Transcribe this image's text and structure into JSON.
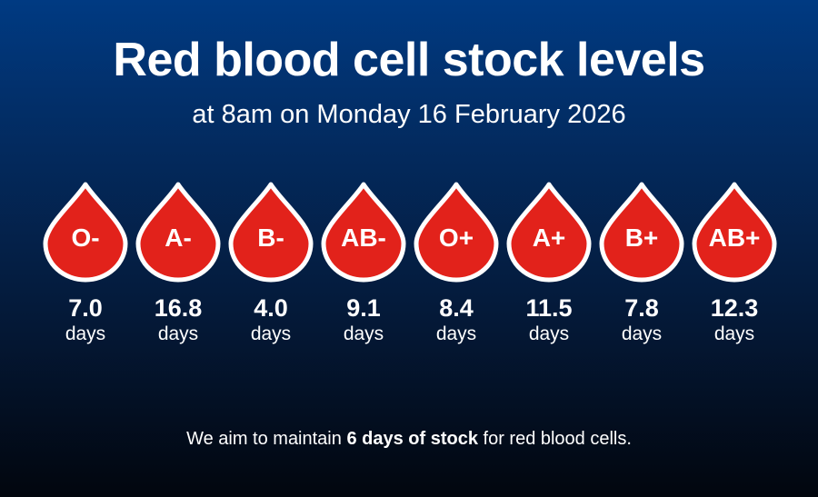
{
  "header": {
    "title": "Red blood cell stock levels",
    "subtitle": "at 8am on Monday 16 February 2026"
  },
  "colors": {
    "drop_fill": "#e2221b",
    "drop_outline": "#ffffff",
    "background_top": "#003a82",
    "background_bottom": "#02060e"
  },
  "stock": [
    {
      "type": "O-",
      "days": "7.0",
      "unit": "days"
    },
    {
      "type": "A-",
      "days": "16.8",
      "unit": "days"
    },
    {
      "type": "B-",
      "days": "4.0",
      "unit": "days"
    },
    {
      "type": "AB-",
      "days": "9.1",
      "unit": "days"
    },
    {
      "type": "O+",
      "days": "8.4",
      "unit": "days"
    },
    {
      "type": "A+",
      "days": "11.5",
      "unit": "days"
    },
    {
      "type": "B+",
      "days": "7.8",
      "unit": "days"
    },
    {
      "type": "AB+",
      "days": "12.3",
      "unit": "days"
    }
  ],
  "footer": {
    "before": "We aim to maintain ",
    "emphasis": "6 days of stock",
    "after": " for red blood cells."
  }
}
